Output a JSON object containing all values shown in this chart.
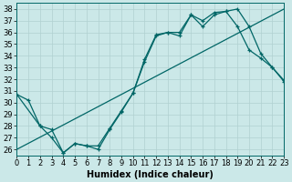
{
  "xlabel": "Humidex (Indice chaleur)",
  "background_color": "#cbe8e8",
  "line_color": "#006666",
  "xlim": [
    0,
    23
  ],
  "ylim": [
    25.5,
    38.5
  ],
  "yticks": [
    26,
    27,
    28,
    29,
    30,
    31,
    32,
    33,
    34,
    35,
    36,
    37,
    38
  ],
  "xticks": [
    0,
    1,
    2,
    3,
    4,
    5,
    6,
    7,
    8,
    9,
    10,
    11,
    12,
    13,
    14,
    15,
    16,
    17,
    18,
    19,
    20,
    21,
    22,
    23
  ],
  "line1_x": [
    0,
    1,
    2,
    3,
    4,
    5,
    6,
    7,
    8,
    9,
    10,
    11,
    12,
    13,
    14,
    15,
    16,
    17,
    18,
    19,
    20,
    21,
    22,
    23
  ],
  "line1_y": [
    30.7,
    30.2,
    28.0,
    27.0,
    25.7,
    26.5,
    26.3,
    26.0,
    27.7,
    29.2,
    30.8,
    33.5,
    35.7,
    36.0,
    36.0,
    37.5,
    36.5,
    37.5,
    37.8,
    36.5,
    34.5,
    33.8,
    33.0,
    31.8
  ],
  "line2_x": [
    0,
    2,
    3,
    4,
    5,
    6,
    7,
    8,
    9,
    10,
    11,
    12,
    13,
    14,
    15,
    16,
    17,
    18,
    19,
    20,
    21,
    22,
    23
  ],
  "line2_y": [
    30.7,
    28.0,
    27.7,
    25.7,
    26.5,
    26.3,
    26.3,
    27.8,
    29.3,
    30.8,
    33.7,
    35.8,
    36.0,
    35.7,
    37.5,
    37.0,
    37.7,
    37.8,
    38.0,
    36.5,
    34.2,
    33.0,
    31.9
  ],
  "line3_x": [
    0,
    23
  ],
  "line3_y": [
    26.0,
    38.0
  ],
  "grid_color": "#b0d0d0",
  "tick_fontsize": 6,
  "xlabel_fontsize": 7
}
